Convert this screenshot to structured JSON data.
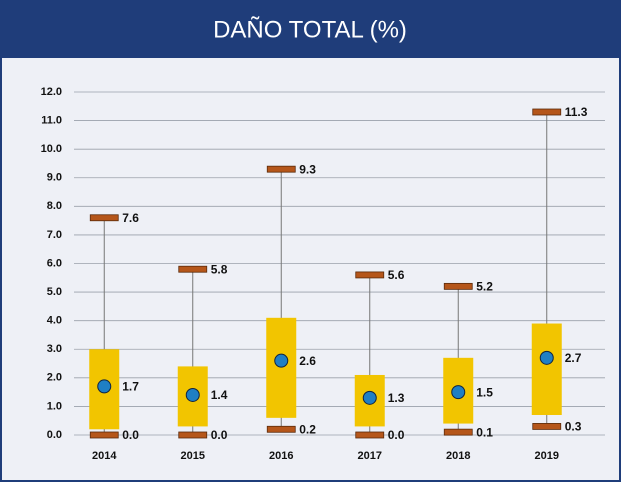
{
  "chart_data": {
    "type": "box",
    "title": "DAÑO TOTAL (%)",
    "categories": [
      "2014",
      "2015",
      "2016",
      "2017",
      "2018",
      "2019"
    ],
    "q1": [
      0.2,
      0.3,
      0.6,
      0.3,
      0.4,
      0.7
    ],
    "q3": [
      3.0,
      2.4,
      4.1,
      2.1,
      2.7,
      3.9
    ],
    "min": {
      "values": [
        0,
        0,
        0.2,
        0,
        0.1,
        0.3
      ],
      "value_labels": [
        "0.0",
        "0.0",
        "0.2",
        "0.0",
        "0.1",
        "0.3"
      ]
    },
    "max": {
      "values": [
        7.6,
        5.8,
        9.3,
        5.6,
        5.2,
        11.3
      ],
      "value_labels": [
        "7.6",
        "5.8",
        "9.3",
        "5.6",
        "5.2",
        "11.3"
      ]
    },
    "mean": {
      "values": [
        1.7,
        1.4,
        2.6,
        1.3,
        1.5,
        2.7
      ],
      "value_labels": [
        "1.7",
        "1.4",
        "2.6",
        "1.3",
        "1.5",
        "2.7"
      ]
    },
    "box_color": "#f2c500",
    "cap_color": "#b5561a",
    "mean_color": "#1f7fc4",
    "ylim": [
      0,
      12
    ],
    "yticks": [
      {
        "value": 0,
        "label": "0.0"
      },
      {
        "value": 1,
        "label": "1.0"
      },
      {
        "value": 2,
        "label": "2.0"
      },
      {
        "value": 3,
        "label": "3.0"
      },
      {
        "value": 4,
        "label": "4.0"
      },
      {
        "value": 5,
        "label": "5.0"
      },
      {
        "value": 6,
        "label": "6.0"
      },
      {
        "value": 7,
        "label": "7.0"
      },
      {
        "value": 8,
        "label": "8.0"
      },
      {
        "value": 9,
        "label": "9.0"
      },
      {
        "value": 10,
        "label": "10.0"
      },
      {
        "value": 11,
        "label": "11.0"
      },
      {
        "value": 12,
        "label": "12.0"
      }
    ],
    "grid": true
  }
}
